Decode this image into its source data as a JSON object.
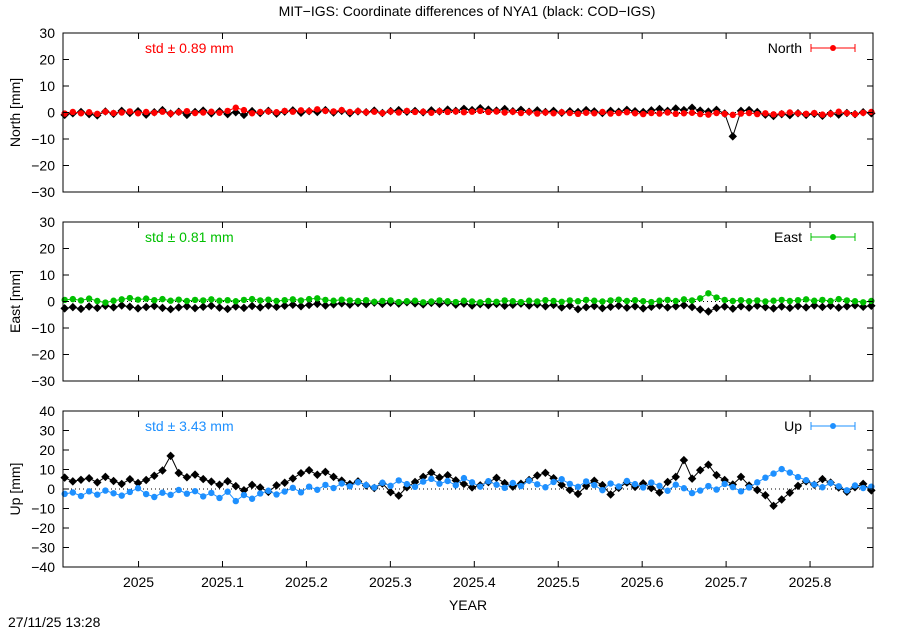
{
  "title": "MIT−IGS: Coordinate differences of NYA1 (black: COD−IGS)",
  "timestamp": "27/11/25 13:28",
  "colors": {
    "north": "#ff0000",
    "east": "#00c000",
    "up": "#1e90ff",
    "reference": "#000000"
  },
  "chart_data": [
    {
      "type": "line",
      "name": "north",
      "ylabel": "North [mm]",
      "ylim": [
        -30,
        30
      ],
      "yticks": [
        -30,
        -20,
        -10,
        0,
        10,
        20,
        30
      ],
      "ytick_labels": [
        "−30",
        "−20",
        "−10",
        "0",
        "10",
        "20",
        "30"
      ],
      "xlim": [
        2024.91,
        2025.875
      ],
      "legend": "North",
      "std_label": "std ± 0.89 mm",
      "series": [
        {
          "name": "North",
          "color": "#ff0000",
          "x_start": 2024.912,
          "x_end": 2025.873,
          "values": [
            -0.4,
            0.2,
            -0.3,
            0.1,
            -0.5,
            0.3,
            -0.2,
            0.0,
            0.4,
            -0.3,
            0.2,
            -0.1,
            0.3,
            -0.4,
            0.1,
            0.5,
            -0.2,
            0.0,
            0.3,
            -0.1,
            0.6,
            1.8,
            0.9,
            -0.3,
            0.2,
            0.4,
            0.1,
            0.6,
            0.3,
            0.8,
            0.5,
            1.2,
            0.6,
            0.4,
            0.9,
            0.2,
            0.5,
            0.1,
            0.3,
            -0.2,
            0.4,
            0.0,
            0.6,
            0.2,
            0.3,
            -0.1,
            0.5,
            0.2,
            0.4,
            0.1,
            0.3,
            0.6,
            0.2,
            0.4,
            0.0,
            0.3,
            -0.2,
            0.2,
            -0.4,
            0.0,
            -0.3,
            0.1,
            -0.2,
            -0.5,
            -0.1,
            -0.3,
            0.2,
            -0.4,
            -0.2,
            0.1,
            -0.3,
            -0.6,
            -0.2,
            -0.4,
            0.0,
            -0.5,
            -0.3,
            -0.1,
            -0.6,
            -0.8,
            -0.2,
            -0.5,
            -0.9,
            -0.4,
            -0.2,
            -0.6,
            -0.3,
            -0.7,
            -0.4,
            0.0,
            -0.3,
            -0.5,
            -0.2,
            -0.8,
            -0.5,
            0.3,
            -0.2,
            -0.6,
            -0.1,
            0.2
          ]
        },
        {
          "name": "COD−IGS",
          "color": "#000000",
          "x_start": 2024.912,
          "x_end": 2025.873,
          "values": [
            -0.9,
            -0.3,
            0.2,
            -0.6,
            -1.1,
            0.4,
            -0.5,
            0.6,
            -0.2,
            0.5,
            -0.8,
            0.1,
            0.9,
            -0.4,
            0.3,
            -0.9,
            0.2,
            0.7,
            -0.3,
            0.4,
            -0.6,
            0.1,
            -0.9,
            0.5,
            -0.2,
            0.6,
            -0.4,
            0.3,
            0.8,
            -0.1,
            0.5,
            0.2,
            0.9,
            0.0,
            0.6,
            -0.3,
            0.4,
            0.1,
            0.7,
            -0.2,
            0.5,
            0.9,
            0.3,
            0.6,
            0.1,
            0.8,
            0.4,
            1.1,
            0.6,
            1.4,
            0.9,
            1.6,
            1.1,
            0.7,
            1.3,
            0.5,
            1.0,
            0.3,
            0.8,
            0.2,
            0.6,
            -0.1,
            0.5,
            0.2,
            0.9,
            0.4,
            -0.2,
            0.6,
            0.3,
            1.0,
            0.5,
            0.2,
            0.8,
            1.3,
            0.6,
            1.5,
            0.9,
            1.8,
            0.7,
            0.3,
            1.0,
            -0.4,
            -9.0,
            0.6,
            0.9,
            0.2,
            -0.8,
            -1.3,
            -0.6,
            -1.0,
            -0.3,
            -0.9,
            -0.5,
            -1.2,
            -0.4,
            -0.8,
            -0.2,
            -0.6,
            0.1,
            -0.3
          ]
        }
      ]
    },
    {
      "type": "line",
      "name": "east",
      "ylabel": "East [mm]",
      "ylim": [
        -30,
        30
      ],
      "yticks": [
        -30,
        -20,
        -10,
        0,
        10,
        20,
        30
      ],
      "ytick_labels": [
        "−30",
        "−20",
        "−10",
        "0",
        "10",
        "20",
        "30"
      ],
      "xlim": [
        2024.91,
        2025.875
      ],
      "legend": "East",
      "std_label": "std ± 0.81 mm",
      "series": [
        {
          "name": "East",
          "color": "#00c000",
          "x_start": 2024.912,
          "x_end": 2025.873,
          "values": [
            0.6,
            0.9,
            0.4,
            1.1,
            0.2,
            -0.4,
            0.3,
            0.8,
            1.3,
            0.7,
            1.1,
            0.5,
            0.9,
            0.3,
            0.7,
            0.2,
            0.6,
            0.4,
            0.8,
            0.3,
            0.5,
            0.1,
            0.6,
            0.9,
            0.4,
            0.7,
            0.2,
            0.5,
            0.8,
            0.4,
            0.9,
            1.2,
            0.6,
            0.3,
            0.7,
            0.4,
            0.2,
            0.5,
            -0.1,
            0.2,
            0.4,
            -0.2,
            0.1,
            0.3,
            -0.3,
            0.0,
            0.4,
            0.1,
            -0.2,
            0.3,
            0.0,
            -0.3,
            0.2,
            -0.1,
            0.4,
            0.1,
            -0.2,
            0.3,
            0.0,
            0.5,
            0.2,
            -0.1,
            0.4,
            0.1,
            0.6,
            0.3,
            0.0,
            0.4,
            0.7,
            0.2,
            0.5,
            0.1,
            -0.2,
            0.3,
            0.6,
            0.2,
            0.8,
            0.4,
            1.2,
            3.1,
            1.5,
            0.6,
            0.2,
            0.5,
            0.1,
            0.4,
            0.0,
            0.3,
            0.6,
            0.2,
            0.5,
            0.8,
            0.3,
            0.6,
            0.2,
            0.9,
            0.4,
            0.1,
            -0.3,
            0.2
          ]
        },
        {
          "name": "COD−IGS",
          "color": "#000000",
          "x_start": 2024.912,
          "x_end": 2025.873,
          "values": [
            -2.6,
            -2.1,
            -2.8,
            -1.9,
            -2.4,
            -1.6,
            -2.2,
            -1.5,
            -2.0,
            -2.6,
            -2.1,
            -1.7,
            -2.4,
            -2.9,
            -2.2,
            -1.8,
            -2.5,
            -2.0,
            -1.6,
            -2.3,
            -2.8,
            -1.9,
            -2.4,
            -1.7,
            -2.2,
            -1.5,
            -2.0,
            -1.6,
            -1.2,
            -1.8,
            -1.3,
            -0.9,
            -1.5,
            -1.1,
            -0.7,
            -1.2,
            -0.6,
            -1.0,
            -0.4,
            -0.9,
            -0.5,
            -0.8,
            -0.3,
            -0.7,
            -1.1,
            -0.5,
            -0.9,
            -0.4,
            -1.2,
            -0.8,
            -1.5,
            -1.0,
            -1.4,
            -0.9,
            -1.6,
            -1.2,
            -0.8,
            -1.5,
            -1.1,
            -1.8,
            -1.3,
            -2.2,
            -1.6,
            -2.9,
            -2.1,
            -1.7,
            -2.5,
            -2.0,
            -1.6,
            -2.3,
            -1.8,
            -2.6,
            -2.0,
            -1.5,
            -2.2,
            -1.8,
            -1.4,
            -2.1,
            -3.0,
            -3.8,
            -2.4,
            -1.9,
            -2.7,
            -1.8,
            -2.3,
            -1.6,
            -2.1,
            -2.6,
            -1.9,
            -2.4,
            -1.7,
            -2.2,
            -1.5,
            -2.0,
            -1.6,
            -2.3,
            -1.8,
            -1.4,
            -2.0,
            -1.6
          ]
        }
      ]
    },
    {
      "type": "line",
      "name": "up",
      "ylabel": "Up [mm]",
      "xlabel": "YEAR",
      "ylim": [
        -40,
        40
      ],
      "yticks": [
        -40,
        -30,
        -20,
        -10,
        0,
        10,
        20,
        30,
        40
      ],
      "ytick_labels": [
        "−40",
        "−30",
        "−20",
        "−10",
        "0",
        "10",
        "20",
        "30",
        "40"
      ],
      "xlim": [
        2024.91,
        2025.875
      ],
      "xticks": [
        2025,
        2025.1,
        2025.2,
        2025.3,
        2025.4,
        2025.5,
        2025.6,
        2025.7,
        2025.8
      ],
      "xtick_labels": [
        "2025",
        "2025.1",
        "2025.2",
        "2025.3",
        "2025.4",
        "2025.5",
        "2025.6",
        "2025.7",
        "2025.8"
      ],
      "legend": "Up",
      "std_label": "std ± 3.43 mm",
      "series": [
        {
          "name": "Up",
          "color": "#1e90ff",
          "x_start": 2024.912,
          "x_end": 2025.873,
          "values": [
            -2.5,
            -1.8,
            -3.6,
            -1.2,
            -2.9,
            -0.8,
            -2.2,
            -3.4,
            -1.5,
            0.4,
            -2.6,
            -4.1,
            -1.9,
            -3.0,
            -0.5,
            -2.4,
            -1.1,
            -3.8,
            -2.0,
            -4.6,
            -1.4,
            -6.2,
            -3.1,
            -5.0,
            -2.3,
            -0.9,
            -2.8,
            -1.3,
            0.6,
            -1.7,
            1.2,
            -0.4,
            2.1,
            0.5,
            2.8,
            1.4,
            3.5,
            2.0,
            0.8,
            3.2,
            1.6,
            4.4,
            2.5,
            1.1,
            3.8,
            5.2,
            2.7,
            4.1,
            1.9,
            5.6,
            3.4,
            1.2,
            4.0,
            2.2,
            0.6,
            3.1,
            1.5,
            4.3,
            2.4,
            0.9,
            3.6,
            5.0,
            2.6,
            1.1,
            3.9,
            2.0,
            -0.6,
            2.8,
            1.3,
            4.1,
            2.5,
            0.8,
            3.3,
            1.6,
            -0.9,
            2.2,
            0.4,
            -2.1,
            -0.8,
            1.5,
            -0.3,
            2.6,
            1.0,
            -1.2,
            0.8,
            3.4,
            5.8,
            7.9,
            10.2,
            8.4,
            6.1,
            4.5,
            2.3,
            0.9,
            3.1,
            1.4,
            -0.7,
            1.8,
            0.5,
            1.2
          ]
        },
        {
          "name": "COD−IGS",
          "color": "#000000",
          "x_start": 2024.912,
          "x_end": 2025.873,
          "values": [
            5.8,
            3.9,
            4.7,
            5.5,
            3.4,
            6.2,
            4.1,
            2.6,
            5.0,
            3.1,
            4.6,
            6.8,
            9.5,
            17.0,
            8.2,
            6.0,
            7.4,
            5.1,
            3.8,
            2.2,
            4.0,
            1.5,
            -0.6,
            2.1,
            0.8,
            -1.5,
            1.9,
            3.2,
            5.4,
            8.1,
            9.6,
            7.3,
            8.8,
            6.2,
            4.3,
            2.5,
            3.9,
            1.8,
            0.5,
            2.8,
            -1.6,
            -3.4,
            0.9,
            3.6,
            6.2,
            8.4,
            5.9,
            7.1,
            4.4,
            2.6,
            0.8,
            1.9,
            3.5,
            5.7,
            3.0,
            1.2,
            2.7,
            4.6,
            6.9,
            8.3,
            5.5,
            2.1,
            -0.4,
            -2.5,
            1.6,
            4.2,
            2.0,
            -2.8,
            0.6,
            3.3,
            1.1,
            2.9,
            0.5,
            -1.8,
            3.6,
            6.2,
            14.8,
            5.3,
            9.7,
            12.4,
            7.1,
            4.6,
            2.3,
            6.2,
            1.8,
            -0.5,
            -3.2,
            -8.6,
            -5.4,
            -1.9,
            1.6,
            4.0,
            2.2,
            5.1,
            3.3,
            0.8,
            -1.4,
            0.9,
            2.6,
            -0.7
          ]
        }
      ]
    }
  ]
}
